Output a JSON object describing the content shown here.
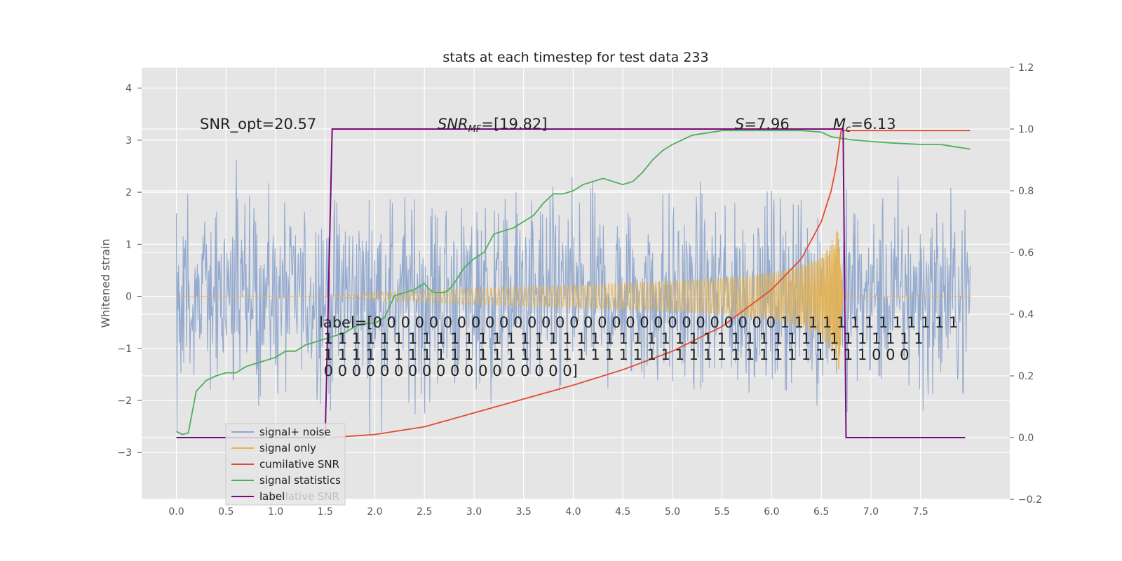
{
  "chart_data": {
    "type": "line",
    "title": "stats at each timestep for test data 233",
    "xlabel": "",
    "ylabel": "Whitened strain",
    "xlim": [
      -0.35,
      8.4
    ],
    "ylim": [
      -3.9,
      4.4
    ],
    "y2lim": [
      -0.2,
      1.2
    ],
    "x_ticks": [
      "0.0",
      "0.5",
      "1.0",
      "1.5",
      "2.0",
      "2.5",
      "3.0",
      "3.5",
      "4.0",
      "4.5",
      "5.0",
      "5.5",
      "6.0",
      "6.5",
      "7.0",
      "7.5"
    ],
    "y_ticks": [
      "−3",
      "−2",
      "−1",
      "0",
      "1",
      "2",
      "3",
      "4"
    ],
    "y2_ticks": [
      "−0.2",
      "0.0",
      "0.2",
      "0.4",
      "0.6",
      "0.8",
      "1.0",
      "1.2"
    ],
    "grid": true,
    "legend_position": "lower-left",
    "colors": {
      "noise": "#8ea5cc",
      "signal": "#e8b24a",
      "cumulative_snr": "#e24a33",
      "signal_stats": "#4daf5b",
      "label": "#7a0a7a",
      "background": "#e5e5e5"
    },
    "series": [
      {
        "name": "signal+ noise",
        "axis": "left",
        "description_range": [
          -3.4,
          4.05
        ],
        "x_range": [
          0.0,
          8.0
        ]
      },
      {
        "name": "signal only",
        "axis": "left",
        "envelope": {
          "x": [
            1.5,
            2.0,
            3.0,
            4.0,
            5.0,
            5.5,
            6.0,
            6.3,
            6.5,
            6.6,
            6.68,
            6.72
          ],
          "amplitude": [
            0.0,
            0.08,
            0.16,
            0.22,
            0.3,
            0.36,
            0.46,
            0.6,
            0.8,
            1.05,
            1.45,
            0.0
          ]
        }
      },
      {
        "name": "cumilative SNR",
        "axis": "right",
        "x": [
          1.55,
          2.0,
          2.5,
          3.0,
          3.5,
          4.0,
          4.5,
          5.0,
          5.5,
          6.0,
          6.3,
          6.5,
          6.6,
          6.65,
          6.7,
          8.0
        ],
        "y": [
          0.0,
          0.01,
          0.035,
          0.08,
          0.125,
          0.17,
          0.22,
          0.28,
          0.36,
          0.48,
          0.58,
          0.7,
          0.8,
          0.88,
          0.995,
          0.995
        ]
      },
      {
        "name": "signal statistics",
        "axis": "right",
        "x": [
          0.0,
          0.06,
          0.12,
          0.2,
          0.3,
          0.4,
          0.5,
          0.6,
          0.7,
          0.8,
          0.9,
          1.0,
          1.1,
          1.2,
          1.3,
          1.4,
          1.5,
          1.6,
          1.7,
          1.8,
          1.9,
          2.0,
          2.1,
          2.2,
          2.3,
          2.4,
          2.5,
          2.55,
          2.6,
          2.7,
          2.75,
          2.8,
          2.9,
          3.0,
          3.1,
          3.2,
          3.3,
          3.4,
          3.5,
          3.6,
          3.7,
          3.8,
          3.9,
          4.0,
          4.1,
          4.2,
          4.3,
          4.4,
          4.5,
          4.6,
          4.7,
          4.8,
          4.9,
          5.0,
          5.2,
          5.5,
          6.0,
          6.3,
          6.5,
          6.6,
          6.7,
          6.8,
          7.0,
          7.2,
          7.5,
          7.7,
          7.8,
          8.0
        ],
        "y": [
          0.02,
          0.01,
          0.015,
          0.15,
          0.185,
          0.2,
          0.21,
          0.21,
          0.23,
          0.24,
          0.25,
          0.26,
          0.28,
          0.28,
          0.3,
          0.31,
          0.32,
          0.33,
          0.34,
          0.36,
          0.37,
          0.37,
          0.39,
          0.46,
          0.47,
          0.48,
          0.5,
          0.48,
          0.47,
          0.47,
          0.48,
          0.5,
          0.55,
          0.58,
          0.6,
          0.66,
          0.67,
          0.68,
          0.7,
          0.72,
          0.76,
          0.79,
          0.79,
          0.8,
          0.82,
          0.83,
          0.84,
          0.83,
          0.82,
          0.83,
          0.86,
          0.9,
          0.93,
          0.95,
          0.98,
          0.995,
          0.995,
          0.995,
          0.99,
          0.975,
          0.97,
          0.965,
          0.96,
          0.955,
          0.95,
          0.95,
          0.945,
          0.935
        ]
      },
      {
        "name": "label",
        "axis": "right",
        "x": [
          0.0,
          1.5,
          1.5,
          1.57,
          1.57,
          6.72,
          6.72,
          6.75,
          6.75,
          7.95
        ],
        "y": [
          0.0,
          0.0,
          0.0,
          1.0,
          1.0,
          1.0,
          1.0,
          0.0,
          0.0,
          0.0
        ]
      }
    ],
    "annotations": {
      "snr_opt": "SNR_opt=20.57",
      "snr_mf_label": "SNR",
      "snr_mf_sub": "MF",
      "snr_mf_value": "=[19.82]",
      "s_label": "S",
      "s_value": "=7.96",
      "mc_label": "M",
      "mc_sub": "c",
      "mc_value": "=6.13",
      "label_lines": [
        "label=[0 0 0 0 0 0 0 0 0 0 0 0 0 0 0 0 0 0 0 0 0 0 0 0 0 0 0 0 0 1 1 1 1 1 1 1 1 1 1 1 1 1",
        " 1 1 1 1 1 1 1 1 1 1 1 1 1 1 1 1 1 1 1 1 1 1 1 1 1 1 1 1 1 1 1 1 1 1 1 1 1 1 1 1 1 1 1",
        " 1 1 1 1 1 1 1 1 1 1 1 1 1 1 1 1 1 1 1 1 1 1 1 1 1 1 1 1 1 1 1 1 1 1 1 1 1 1 1 0 0 0",
        " 0 0 0 0 0 0 0 0 0 0 0 0 0 0 0 0 0 0]"
      ]
    },
    "legend": [
      {
        "name": "signal+ noise",
        "color": "#8ea5cc"
      },
      {
        "name": "signal only",
        "color": "#e8b24a"
      },
      {
        "name": "cumilative SNR",
        "color": "#e24a33"
      },
      {
        "name": "signal statistics",
        "color": "#4daf5b"
      },
      {
        "name": "label",
        "color": "#7a0a7a"
      }
    ],
    "legend_ghost_text": "cumilative SNR"
  }
}
